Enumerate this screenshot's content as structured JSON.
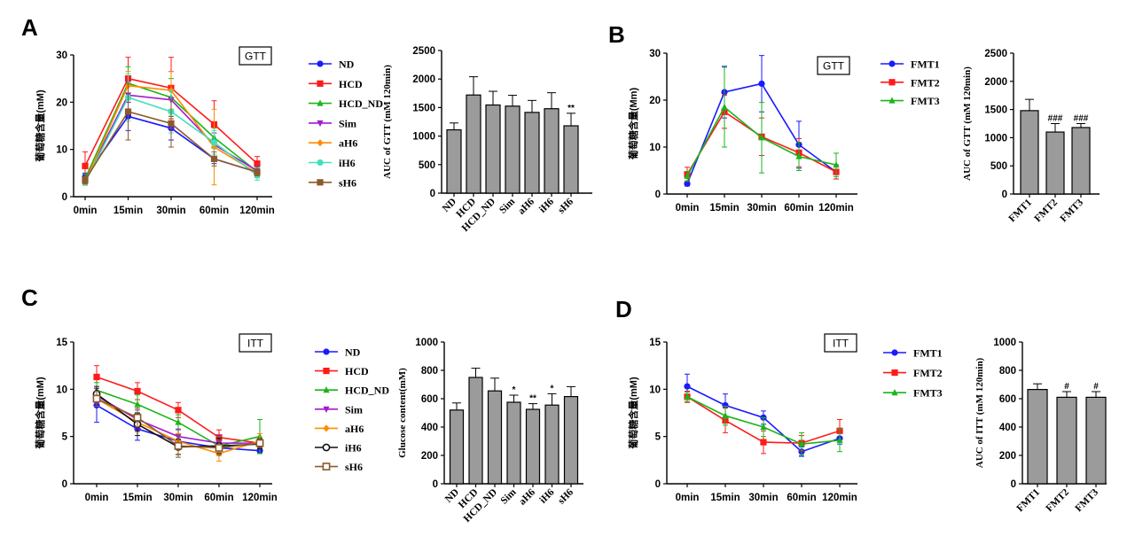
{
  "panels": [
    {
      "label": "A",
      "line": {
        "box_label": "GTT",
        "ylabel": "葡萄糖含量(mM)",
        "ylim": [
          0,
          30
        ],
        "yticks": [
          0,
          10,
          20,
          30
        ],
        "categories": [
          "0min",
          "15min",
          "30min",
          "60min",
          "120min"
        ],
        "series": [
          {
            "name": "ND",
            "color": "#1a1aff",
            "marker": "circle",
            "values": [
              4.2,
              17.0,
              14.5,
              8.0,
              5.2
            ],
            "err": [
              0.8,
              3.0,
              2.5,
              1.0,
              0.8
            ]
          },
          {
            "name": "HCD",
            "color": "#ff1a1a",
            "marker": "square",
            "values": [
              6.5,
              25.0,
              23.0,
              15.3,
              7.0
            ],
            "err": [
              3.0,
              4.5,
              6.5,
              5.0,
              1.5
            ]
          },
          {
            "name": "HCD_ND",
            "color": "#1ab51a",
            "marker": "triangle",
            "values": [
              3.8,
              24.0,
              21.0,
              12.5,
              5.3
            ],
            "err": [
              1.0,
              3.5,
              4.0,
              2.0,
              1.0
            ]
          },
          {
            "name": "Sim",
            "color": "#a31ad1",
            "marker": "triangle-down",
            "values": [
              3.5,
              21.5,
              20.5,
              11.0,
              5.5
            ],
            "err": [
              0.8,
              3.0,
              6.0,
              2.5,
              1.0
            ]
          },
          {
            "name": "aH6",
            "color": "#ff8c00",
            "marker": "diamond",
            "values": [
              3.2,
              23.5,
              22.5,
              10.5,
              5.0
            ],
            "err": [
              0.8,
              3.0,
              4.0,
              8.0,
              1.0
            ]
          },
          {
            "name": "iH6",
            "color": "#40e0c0",
            "marker": "circle",
            "values": [
              3.0,
              21.0,
              18.0,
              11.5,
              4.5
            ],
            "err": [
              0.5,
              5.0,
              4.5,
              2.5,
              1.0
            ]
          },
          {
            "name": "sH6",
            "color": "#8b5a2b",
            "marker": "square",
            "values": [
              3.5,
              18.0,
              15.5,
              8.0,
              5.2
            ],
            "err": [
              0.8,
              6.0,
              5.0,
              1.5,
              0.8
            ]
          }
        ]
      },
      "bar": {
        "ylabel": "AUC of GTT (mM 120min)",
        "ylim": [
          0,
          2500
        ],
        "yticks": [
          0,
          500,
          1000,
          1500,
          2000,
          2500
        ],
        "categories": [
          "ND",
          "HCD",
          "HCD_ND",
          "Sim",
          "aH6",
          "iH6",
          "sH6"
        ],
        "values": [
          1110,
          1720,
          1545,
          1525,
          1415,
          1480,
          1180
        ],
        "err": [
          120,
          320,
          240,
          190,
          210,
          280,
          220
        ],
        "annotations": [
          "",
          "",
          "",
          "",
          "",
          "",
          "**"
        ]
      }
    },
    {
      "label": "B",
      "line": {
        "box_label": "GTT",
        "ylabel": "葡萄糖含量(Mm)",
        "ylim": [
          0,
          30
        ],
        "yticks": [
          0,
          10,
          20,
          30
        ],
        "categories": [
          "0min",
          "15min",
          "30min",
          "60min",
          "120min"
        ],
        "series": [
          {
            "name": "FMT1",
            "color": "#1a1aff",
            "marker": "circle",
            "values": [
              2.2,
              21.7,
              23.5,
              10.5,
              4.7
            ],
            "err": [
              0.5,
              5.5,
              6.0,
              5.0,
              1.5
            ]
          },
          {
            "name": "FMT2",
            "color": "#ff1a1a",
            "marker": "square",
            "values": [
              4.2,
              17.5,
              12.2,
              8.8,
              4.7
            ],
            "err": [
              1.5,
              3.5,
              4.0,
              3.0,
              1.5
            ]
          },
          {
            "name": "FMT3",
            "color": "#1ab51a",
            "marker": "triangle",
            "values": [
              3.8,
              18.5,
              12.0,
              8.0,
              6.2
            ],
            "err": [
              1.0,
              8.5,
              7.5,
              3.0,
              2.5
            ]
          }
        ]
      },
      "bar": {
        "ylabel": "AUC of GTT (mM 120min)",
        "ylim": [
          0,
          2500
        ],
        "yticks": [
          0,
          500,
          1000,
          1500,
          2000,
          2500
        ],
        "categories": [
          "FMT1",
          "FMT2",
          "FMT3"
        ],
        "values": [
          1480,
          1100,
          1180
        ],
        "err": [
          200,
          150,
          70
        ],
        "annotations": [
          "",
          "###",
          "###"
        ]
      }
    },
    {
      "label": "C",
      "line": {
        "box_label": "ITT",
        "ylabel": "葡萄糖含量(mM)",
        "ylim": [
          0,
          15
        ],
        "yticks": [
          0,
          5,
          10,
          15
        ],
        "categories": [
          "0min",
          "15min",
          "30min",
          "60min",
          "120min"
        ],
        "series": [
          {
            "name": "ND",
            "color": "#1a1aff",
            "marker": "circle",
            "values": [
              8.3,
              5.8,
              4.5,
              3.8,
              3.5
            ],
            "err": [
              1.8,
              1.2,
              0.8,
              0.5,
              0.3
            ]
          },
          {
            "name": "HCD",
            "color": "#ff1a1a",
            "marker": "square",
            "values": [
              11.3,
              9.8,
              7.8,
              4.9,
              4.3
            ],
            "err": [
              1.2,
              0.9,
              0.8,
              0.8,
              0.5
            ]
          },
          {
            "name": "HCD_ND",
            "color": "#1ab51a",
            "marker": "triangle",
            "values": [
              9.9,
              8.4,
              6.5,
              4.0,
              5.0
            ],
            "err": [
              0.8,
              1.0,
              0.8,
              1.0,
              1.8
            ]
          },
          {
            "name": "Sim",
            "color": "#a31ad1",
            "marker": "triangle-down",
            "values": [
              9.3,
              6.8,
              5.0,
              4.3,
              4.3
            ],
            "err": [
              0.8,
              1.0,
              0.8,
              0.8,
              0.5
            ]
          },
          {
            "name": "aH6",
            "color": "#ff8c00",
            "marker": "diamond",
            "values": [
              9.0,
              6.5,
              4.5,
              3.2,
              4.5
            ],
            "err": [
              0.8,
              1.0,
              0.8,
              0.8,
              0.8
            ]
          },
          {
            "name": "iH6",
            "color": "#111111",
            "marker": "circle-open",
            "values": [
              9.5,
              6.3,
              3.9,
              4.0,
              4.2
            ],
            "err": [
              0.8,
              1.2,
              0.8,
              0.8,
              0.5
            ]
          },
          {
            "name": "sH6",
            "color": "#8b5a2b",
            "marker": "square-open",
            "values": [
              9.0,
              7.0,
              4.0,
              3.8,
              4.3
            ],
            "err": [
              0.8,
              1.0,
              1.2,
              0.8,
              0.5
            ]
          }
        ]
      },
      "bar": {
        "ylabel": "Glucose content(mM)",
        "ylim": [
          0,
          1000
        ],
        "yticks": [
          0,
          200,
          400,
          600,
          800,
          1000
        ],
        "categories": [
          "ND",
          "HCD",
          "HCD_ND",
          "Sim",
          "aH6",
          "iH6",
          "sH6"
        ],
        "values": [
          520,
          750,
          655,
          575,
          525,
          555,
          615
        ],
        "err": [
          50,
          65,
          90,
          50,
          40,
          80,
          70
        ],
        "annotations": [
          "",
          "",
          "",
          "*",
          "**",
          "*",
          ""
        ]
      }
    },
    {
      "label": "D",
      "line": {
        "box_label": "ITT",
        "ylabel": "葡萄糖含量(mM)",
        "ylim": [
          0,
          15
        ],
        "yticks": [
          0,
          5,
          10,
          15
        ],
        "categories": [
          "0min",
          "15min",
          "30min",
          "60min",
          "120min"
        ],
        "series": [
          {
            "name": "FMT1",
            "color": "#1a1aff",
            "marker": "circle",
            "values": [
              10.3,
              8.3,
              7.0,
              3.4,
              4.8
            ],
            "err": [
              1.3,
              1.2,
              0.7,
              0.5,
              0.6
            ]
          },
          {
            "name": "FMT2",
            "color": "#ff1a1a",
            "marker": "square",
            "values": [
              9.2,
              6.7,
              4.4,
              4.3,
              5.6
            ],
            "err": [
              0.6,
              1.3,
              1.2,
              0.8,
              1.2
            ]
          },
          {
            "name": "FMT3",
            "color": "#1ab51a",
            "marker": "triangle",
            "values": [
              9.2,
              7.2,
              6.0,
              4.2,
              4.6
            ],
            "err": [
              0.5,
              1.0,
              1.0,
              1.2,
              1.2
            ]
          }
        ]
      },
      "bar": {
        "ylabel": "AUC of ITT (mM 120min)",
        "ylim": [
          0,
          1000
        ],
        "yticks": [
          0,
          200,
          400,
          600,
          800,
          1000
        ],
        "categories": [
          "FMT1",
          "FMT2",
          "FMT3"
        ],
        "values": [
          665,
          610,
          610
        ],
        "err": [
          40,
          40,
          40
        ],
        "annotations": [
          "",
          "#",
          "#"
        ]
      }
    }
  ],
  "chart_data": [
    {
      "type": "line",
      "panel": "A",
      "title": "GTT",
      "ylabel": "葡萄糖含量(mM)",
      "categories": [
        "0min",
        "15min",
        "30min",
        "60min",
        "120min"
      ],
      "ylim": [
        0,
        30
      ],
      "series": [
        {
          "name": "ND",
          "values": [
            4.2,
            17.0,
            14.5,
            8.0,
            5.2
          ]
        },
        {
          "name": "HCD",
          "values": [
            6.5,
            25.0,
            23.0,
            15.3,
            7.0
          ]
        },
        {
          "name": "HCD_ND",
          "values": [
            3.8,
            24.0,
            21.0,
            12.5,
            5.3
          ]
        },
        {
          "name": "Sim",
          "values": [
            3.5,
            21.5,
            20.5,
            11.0,
            5.5
          ]
        },
        {
          "name": "aH6",
          "values": [
            3.2,
            23.5,
            22.5,
            10.5,
            5.0
          ]
        },
        {
          "name": "iH6",
          "values": [
            3.0,
            21.0,
            18.0,
            11.5,
            4.5
          ]
        },
        {
          "name": "sH6",
          "values": [
            3.5,
            18.0,
            15.5,
            8.0,
            5.2
          ]
        }
      ]
    },
    {
      "type": "bar",
      "panel": "A",
      "ylabel": "AUC of GTT (mM 120min)",
      "categories": [
        "ND",
        "HCD",
        "HCD_ND",
        "Sim",
        "aH6",
        "iH6",
        "sH6"
      ],
      "values": [
        1110,
        1720,
        1545,
        1525,
        1415,
        1480,
        1180
      ],
      "ylim": [
        0,
        2500
      ]
    },
    {
      "type": "line",
      "panel": "B",
      "title": "GTT",
      "ylabel": "葡萄糖含量(Mm)",
      "categories": [
        "0min",
        "15min",
        "30min",
        "60min",
        "120min"
      ],
      "ylim": [
        0,
        30
      ],
      "series": [
        {
          "name": "FMT1",
          "values": [
            2.2,
            21.7,
            23.5,
            10.5,
            4.7
          ]
        },
        {
          "name": "FMT2",
          "values": [
            4.2,
            17.5,
            12.2,
            8.8,
            4.7
          ]
        },
        {
          "name": "FMT3",
          "values": [
            3.8,
            18.5,
            12.0,
            8.0,
            6.2
          ]
        }
      ]
    },
    {
      "type": "bar",
      "panel": "B",
      "ylabel": "AUC of GTT (mM 120min)",
      "categories": [
        "FMT1",
        "FMT2",
        "FMT3"
      ],
      "values": [
        1480,
        1100,
        1180
      ],
      "ylim": [
        0,
        2500
      ]
    },
    {
      "type": "line",
      "panel": "C",
      "title": "ITT",
      "ylabel": "葡萄糖含量(mM)",
      "categories": [
        "0min",
        "15min",
        "30min",
        "60min",
        "120min"
      ],
      "ylim": [
        0,
        15
      ],
      "series": [
        {
          "name": "ND",
          "values": [
            8.3,
            5.8,
            4.5,
            3.8,
            3.5
          ]
        },
        {
          "name": "HCD",
          "values": [
            11.3,
            9.8,
            7.8,
            4.9,
            4.3
          ]
        },
        {
          "name": "HCD_ND",
          "values": [
            9.9,
            8.4,
            6.5,
            4.0,
            5.0
          ]
        },
        {
          "name": "Sim",
          "values": [
            9.3,
            6.8,
            5.0,
            4.3,
            4.3
          ]
        },
        {
          "name": "aH6",
          "values": [
            9.0,
            6.5,
            4.5,
            3.2,
            4.5
          ]
        },
        {
          "name": "iH6",
          "values": [
            9.5,
            6.3,
            3.9,
            4.0,
            4.2
          ]
        },
        {
          "name": "sH6",
          "values": [
            9.0,
            7.0,
            4.0,
            3.8,
            4.3
          ]
        }
      ]
    },
    {
      "type": "bar",
      "panel": "C",
      "ylabel": "Glucose content(mM)",
      "categories": [
        "ND",
        "HCD",
        "HCD_ND",
        "Sim",
        "aH6",
        "iH6",
        "sH6"
      ],
      "values": [
        520,
        750,
        655,
        575,
        525,
        555,
        615
      ],
      "ylim": [
        0,
        1000
      ]
    },
    {
      "type": "line",
      "panel": "D",
      "title": "ITT",
      "ylabel": "葡萄糖含量(mM)",
      "categories": [
        "0min",
        "15min",
        "30min",
        "60min",
        "120min"
      ],
      "ylim": [
        0,
        15
      ],
      "series": [
        {
          "name": "FMT1",
          "values": [
            10.3,
            8.3,
            7.0,
            3.4,
            4.8
          ]
        },
        {
          "name": "FMT2",
          "values": [
            9.2,
            6.7,
            4.4,
            4.3,
            5.6
          ]
        },
        {
          "name": "FMT3",
          "values": [
            9.2,
            7.2,
            6.0,
            4.2,
            4.6
          ]
        }
      ]
    },
    {
      "type": "bar",
      "panel": "D",
      "ylabel": "AUC of ITT (mM 120min)",
      "categories": [
        "FMT1",
        "FMT2",
        "FMT3"
      ],
      "values": [
        665,
        610,
        610
      ],
      "ylim": [
        0,
        1000
      ]
    }
  ]
}
